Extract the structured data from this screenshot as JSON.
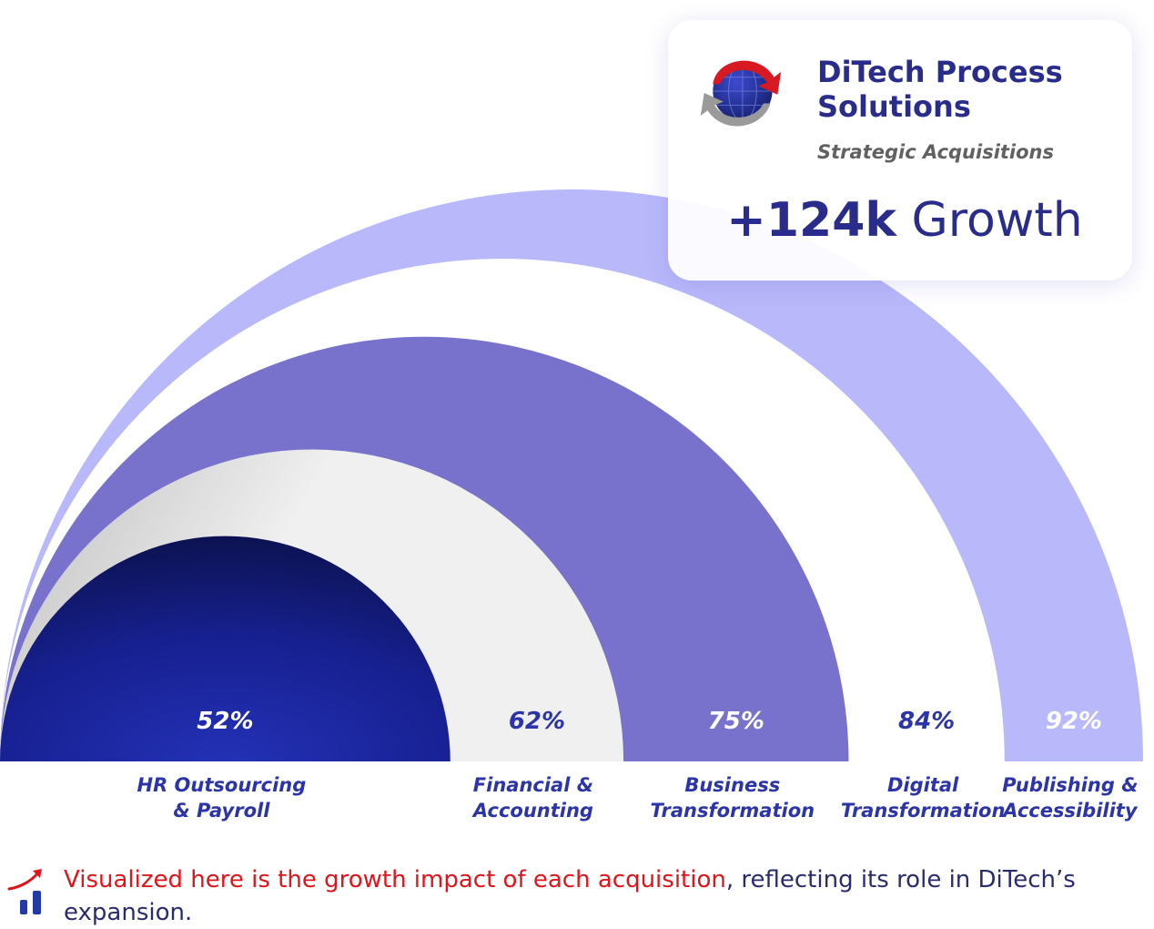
{
  "card": {
    "title_line1": "DiTech Process",
    "title_line2": "Solutions",
    "subtitle": "Strategic Acquisitions",
    "growth_value": "+124k",
    "growth_label": " Growth"
  },
  "logo": {
    "icon": "ditech-globe-logo-icon",
    "colors": [
      "#d71921",
      "#25308a",
      "#9a9a9a"
    ]
  },
  "chart_data": {
    "type": "radial-arc",
    "categories": [
      "HR Outsourcing & Payroll",
      "Financial & Accounting",
      "Business Transformation",
      "Digital Transformation",
      "Publishing & Accessibility"
    ],
    "values": [
      52,
      62,
      75,
      84,
      92
    ],
    "value_labels": [
      "52%",
      "62%",
      "75%",
      "84%",
      "92%"
    ],
    "category_lines": [
      [
        "HR Outsourcing",
        "& Payroll"
      ],
      [
        "Financial &",
        "Accounting"
      ],
      [
        "Business",
        "Transformation"
      ],
      [
        "Digital",
        "Transformation"
      ],
      [
        "Publishing &",
        "Accessibility"
      ]
    ],
    "colors": [
      "#1a2183",
      "#e8e8e8",
      "#7872cc",
      "#ffffff",
      "#b9b8fa"
    ],
    "label_colors": [
      "#ffffff",
      "#2b34a8",
      "#ffffff",
      "#2b34a8",
      "#ffffff"
    ],
    "unit": "%"
  },
  "footer": {
    "icon": "growth-chart-icon",
    "highlight": "Visualized here is the growth impact of each acquisition",
    "rest": ", reflecting its role in DiTech’s expansion."
  }
}
